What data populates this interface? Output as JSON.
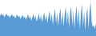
{
  "chart_data": {
    "type": "area",
    "color": "#5b9bd5",
    "tick_labels": false,
    "grid": false,
    "ylim": [
      0,
      100
    ],
    "categories": [
      null,
      null,
      null,
      null,
      null,
      null,
      null,
      null,
      null,
      null,
      null,
      null,
      null,
      null,
      null,
      null,
      null,
      null,
      null,
      null,
      null,
      null,
      null,
      null,
      null,
      null,
      null,
      null,
      null,
      null,
      null,
      null,
      null,
      null,
      null,
      null,
      null,
      null,
      null,
      null,
      null,
      null,
      null,
      null,
      null,
      null,
      null,
      null,
      null,
      null,
      null,
      null,
      null,
      null,
      null,
      null,
      null,
      null,
      null,
      null,
      null,
      null,
      null,
      null,
      null,
      null,
      null,
      null,
      null,
      null,
      null,
      null,
      null,
      null,
      null,
      null,
      null,
      null,
      null,
      null,
      null,
      null,
      null,
      null,
      null,
      null,
      null,
      null,
      null,
      null
    ],
    "values": [
      55,
      62,
      58,
      60,
      52,
      57,
      63,
      55,
      58,
      50,
      56,
      61,
      54,
      57,
      49,
      55,
      60,
      52,
      56,
      47,
      54,
      59,
      50,
      55,
      45,
      53,
      60,
      48,
      56,
      42,
      52,
      62,
      46,
      57,
      40,
      50,
      63,
      44,
      58,
      38,
      52,
      66,
      42,
      60,
      35,
      55,
      70,
      40,
      62,
      30,
      58,
      75,
      35,
      65,
      28,
      60,
      78,
      30,
      68,
      25,
      62,
      80,
      32,
      70,
      22,
      65,
      82,
      28,
      72,
      20,
      60,
      85,
      30,
      75,
      18,
      62,
      88,
      25,
      70,
      15,
      55,
      80,
      20,
      68,
      95,
      40,
      25,
      30,
      20,
      35
    ]
  }
}
